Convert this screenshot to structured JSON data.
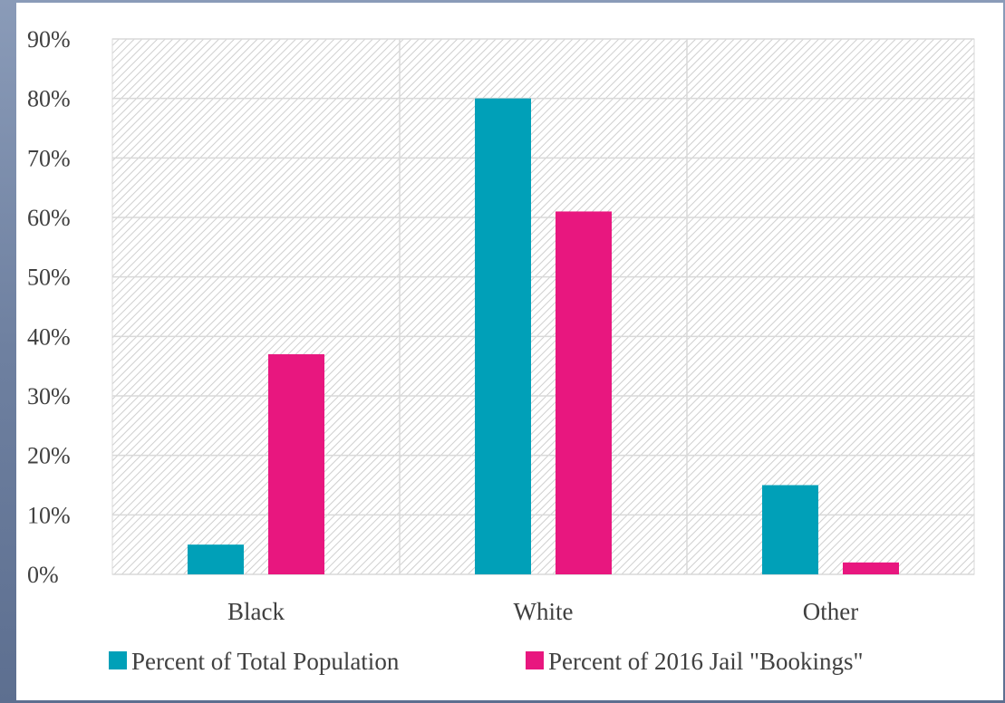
{
  "chart_data": {
    "type": "bar",
    "categories": [
      "Black",
      "White",
      "Other"
    ],
    "series": [
      {
        "name": "Percent of Total Population",
        "values": [
          5,
          80,
          15
        ],
        "color": "#00a0b8"
      },
      {
        "name": "Percent of 2016 Jail \"Bookings\"",
        "values": [
          37,
          61,
          2
        ],
        "color": "#e8177f"
      }
    ],
    "ylim": [
      0,
      90
    ],
    "yticks": [
      0,
      10,
      20,
      30,
      40,
      50,
      60,
      70,
      80,
      90
    ],
    "ytick_labels": [
      "0%",
      "10%",
      "20%",
      "30%",
      "40%",
      "50%",
      "60%",
      "70%",
      "80%",
      "90%"
    ],
    "title": "",
    "xlabel": "",
    "ylabel": "",
    "grid": true,
    "legend_position": "bottom",
    "plot_background": "hatched-gray",
    "gridline_color": "#d9d9d9"
  }
}
